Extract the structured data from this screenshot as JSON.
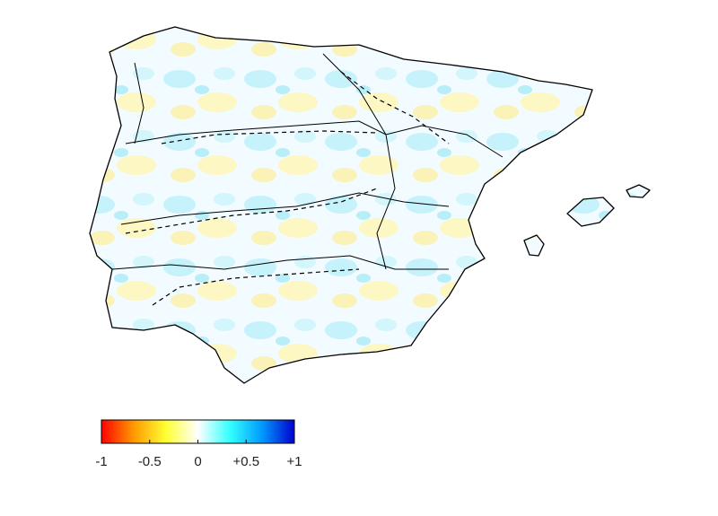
{
  "colorbar": {
    "range": [
      -1,
      1
    ],
    "ticks": [
      -1,
      -0.5,
      0,
      {
        "value": 0.5,
        "label": "+0.5"
      },
      {
        "value": 1,
        "label": "+1"
      }
    ],
    "colormap": [
      "#ff0000",
      "#ff9900",
      "#ffff33",
      "#ffffff",
      "#33ffff",
      "#0099ff",
      "#0000cc"
    ]
  }
}
